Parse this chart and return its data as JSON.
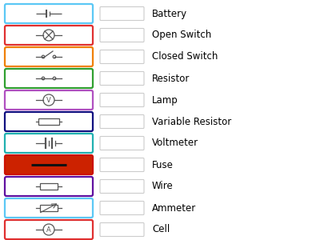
{
  "background_color": "#ffffff",
  "rows": [
    {
      "label": "Battery",
      "border_color": "#5bc8f5",
      "bg_color": "#ffffff",
      "symbol": "battery"
    },
    {
      "label": "Open Switch",
      "border_color": "#e03030",
      "bg_color": "#ffffff",
      "symbol": "lamp"
    },
    {
      "label": "Closed Switch",
      "border_color": "#f08000",
      "bg_color": "#ffffff",
      "symbol": "open_switch"
    },
    {
      "label": "Resistor",
      "border_color": "#30a030",
      "bg_color": "#ffffff",
      "symbol": "closed_switch"
    },
    {
      "label": "Lamp",
      "border_color": "#b050c0",
      "bg_color": "#ffffff",
      "symbol": "voltmeter"
    },
    {
      "label": "Variable Resistor",
      "border_color": "#101080",
      "bg_color": "#ffffff",
      "symbol": "resistor_box"
    },
    {
      "label": "Voltmeter",
      "border_color": "#20b0b0",
      "bg_color": "#ffffff",
      "symbol": "cell"
    },
    {
      "label": "Fuse",
      "border_color": "#cc1100",
      "bg_color": "#cc2200",
      "symbol": "fuse_wire"
    },
    {
      "label": "Wire",
      "border_color": "#6010a0",
      "bg_color": "#ffffff",
      "symbol": "resistor"
    },
    {
      "label": "Ammeter",
      "border_color": "#5bc8f5",
      "bg_color": "#ffffff",
      "symbol": "variable_resistor"
    },
    {
      "label": "Cell",
      "border_color": "#e03030",
      "bg_color": "#ffffff",
      "symbol": "ammeter"
    }
  ],
  "answer_box_color": "#cccccc",
  "label_fontsize": 8.5
}
